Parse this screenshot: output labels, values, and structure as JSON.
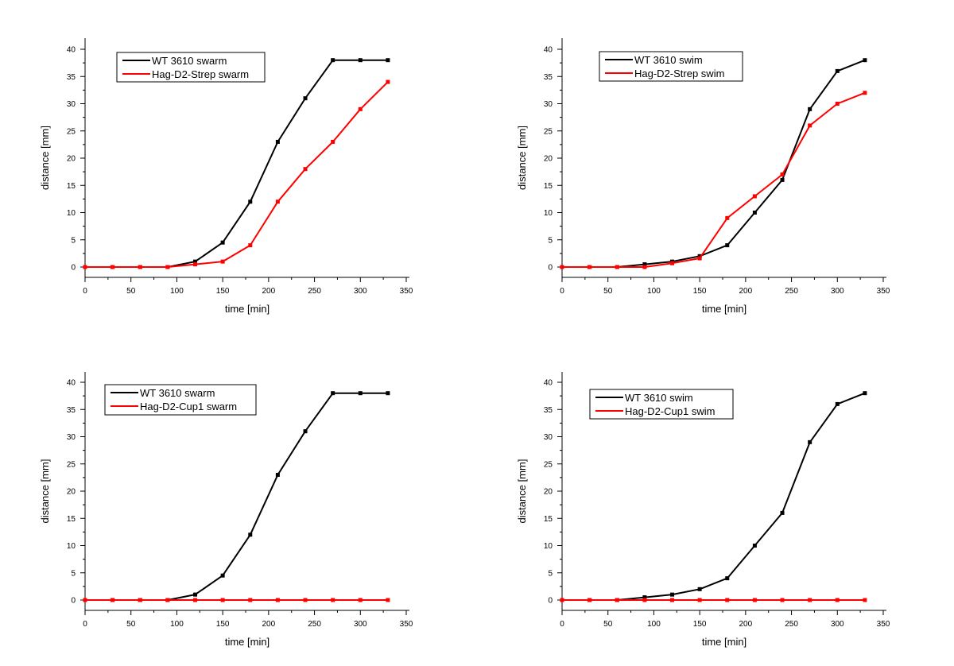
{
  "chart_data": [
    {
      "type": "line",
      "title": "",
      "xlabel": "time [min]",
      "ylabel": "distance [mm]",
      "xlim": [
        0,
        350
      ],
      "ylim": [
        -2,
        42
      ],
      "xticks": [
        0,
        50,
        100,
        150,
        200,
        250,
        300,
        350
      ],
      "yticks": [
        0,
        5,
        10,
        15,
        20,
        25,
        30,
        35,
        40
      ],
      "grid": false,
      "legend_position": "top-left",
      "x": [
        0,
        30,
        60,
        90,
        120,
        150,
        180,
        210,
        240,
        270,
        300,
        330
      ],
      "series": [
        {
          "name": "WT 3610 swarm",
          "color": "#000000",
          "values": [
            0,
            0,
            0,
            0,
            1,
            4.5,
            12,
            23,
            31,
            38,
            38,
            38
          ]
        },
        {
          "name": "Hag-D2-Strep swarm",
          "color": "#ff0000",
          "values": [
            0,
            0,
            0,
            0,
            0.5,
            1,
            4,
            12,
            18,
            23,
            29,
            34
          ]
        }
      ]
    },
    {
      "type": "line",
      "title": "",
      "xlabel": "time [min]",
      "ylabel": "distance [mm]",
      "xlim": [
        0,
        350
      ],
      "ylim": [
        -2,
        42
      ],
      "xticks": [
        0,
        50,
        100,
        150,
        200,
        250,
        300,
        350
      ],
      "yticks": [
        0,
        5,
        10,
        15,
        20,
        25,
        30,
        35,
        40
      ],
      "grid": false,
      "legend_position": "top-left",
      "x": [
        0,
        30,
        60,
        90,
        120,
        150,
        180,
        210,
        240,
        270,
        300,
        330
      ],
      "series": [
        {
          "name": "WT 3610 swim",
          "color": "#000000",
          "values": [
            0,
            0,
            0,
            0.5,
            1,
            2,
            4,
            10,
            16,
            29,
            36,
            38
          ]
        },
        {
          "name": "Hag-D2-Strep swim",
          "color": "#ff0000",
          "values": [
            0,
            0,
            0,
            0,
            0.7,
            1.6,
            9,
            13,
            17,
            26,
            30,
            32
          ]
        }
      ]
    },
    {
      "type": "line",
      "title": "",
      "xlabel": "time [min]",
      "ylabel": "distance [mm]",
      "xlim": [
        0,
        350
      ],
      "ylim": [
        -2,
        42
      ],
      "xticks": [
        0,
        50,
        100,
        150,
        200,
        250,
        300,
        350
      ],
      "yticks": [
        0,
        5,
        10,
        15,
        20,
        25,
        30,
        35,
        40
      ],
      "grid": false,
      "legend_position": "top-left",
      "x": [
        0,
        30,
        60,
        90,
        120,
        150,
        180,
        210,
        240,
        270,
        300,
        330
      ],
      "series": [
        {
          "name": "WT 3610 swarm",
          "color": "#000000",
          "values": [
            0,
            0,
            0,
            0,
            1,
            4.5,
            12,
            23,
            31,
            38,
            38,
            38
          ]
        },
        {
          "name": "Hag-D2-Cup1 swarm",
          "color": "#ff0000",
          "values": [
            0,
            0,
            0,
            0,
            0,
            0,
            0,
            0,
            0,
            0,
            0,
            0
          ]
        }
      ]
    },
    {
      "type": "line",
      "title": "",
      "xlabel": "time [min]",
      "ylabel": "distance [mm]",
      "xlim": [
        0,
        350
      ],
      "ylim": [
        -2,
        42
      ],
      "xticks": [
        0,
        50,
        100,
        150,
        200,
        250,
        300,
        350
      ],
      "yticks": [
        0,
        5,
        10,
        15,
        20,
        25,
        30,
        35,
        40
      ],
      "grid": false,
      "legend_position": "top-left",
      "x": [
        0,
        30,
        60,
        90,
        120,
        150,
        180,
        210,
        240,
        270,
        300,
        330
      ],
      "series": [
        {
          "name": "WT 3610 swim",
          "color": "#000000",
          "values": [
            0,
            0,
            0,
            0.5,
            1,
            2,
            4,
            10,
            16,
            29,
            36,
            38
          ]
        },
        {
          "name": "Hag-D2-Cup1 swim",
          "color": "#ff0000",
          "values": [
            0,
            0,
            0,
            0,
            0,
            0,
            0,
            0,
            0,
            0,
            0,
            0
          ]
        }
      ]
    }
  ]
}
